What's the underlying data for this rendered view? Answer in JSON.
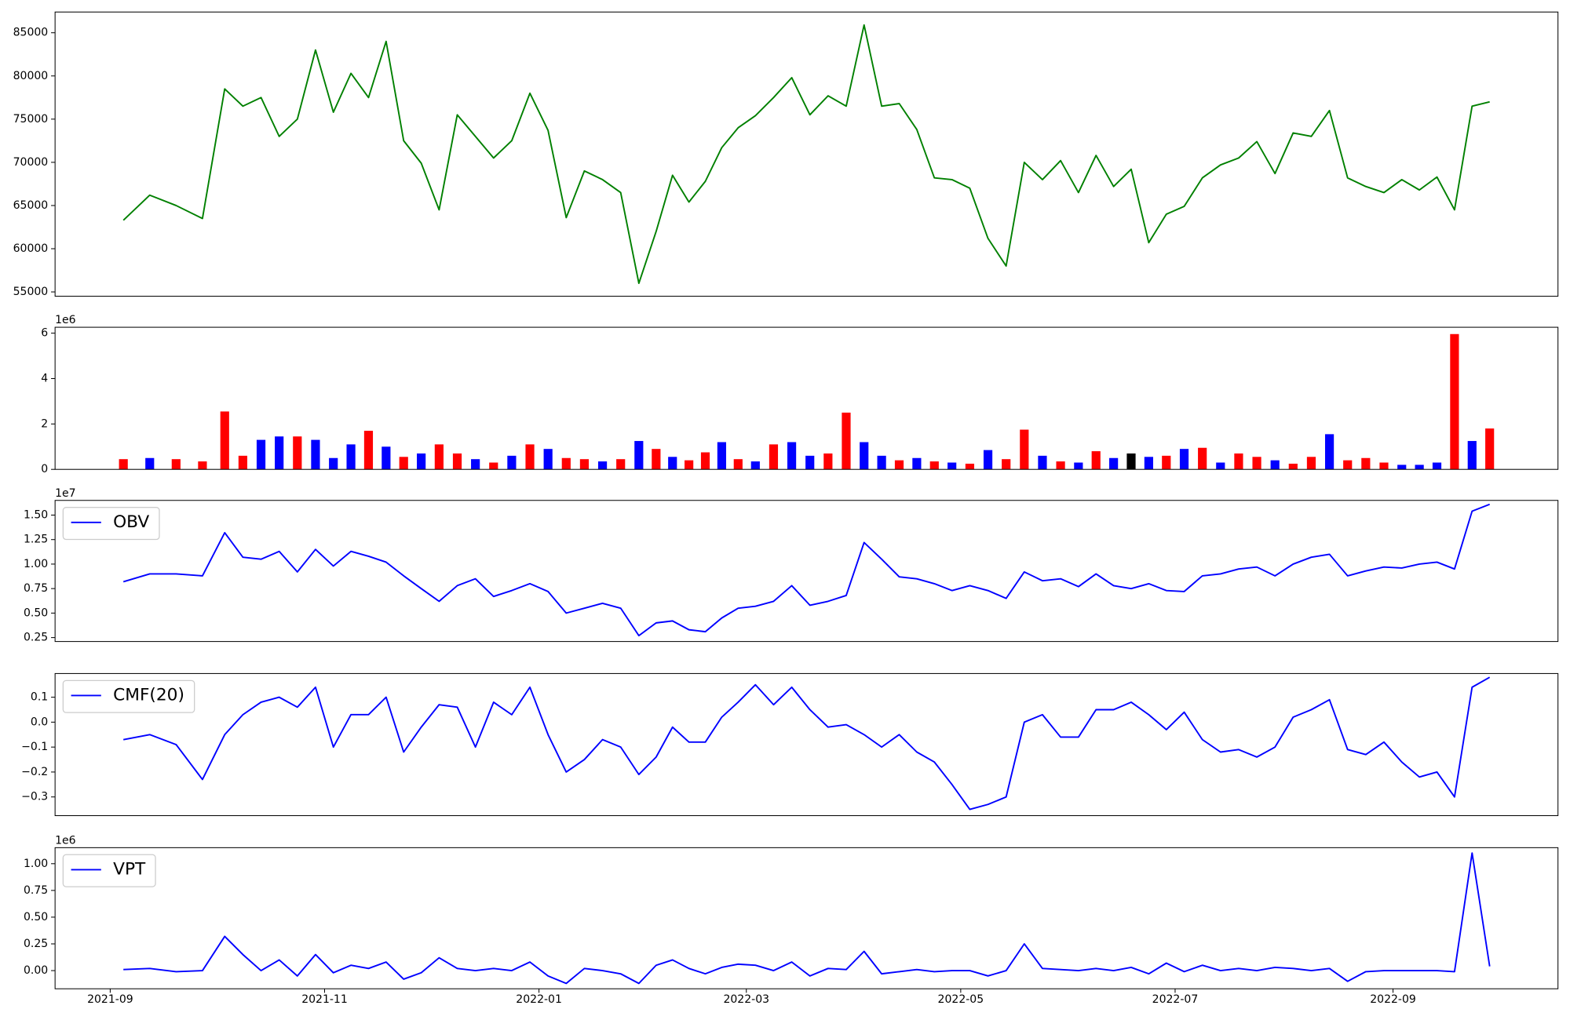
{
  "chart_data": [
    {
      "type": "line",
      "color": "green",
      "x": [
        "2021-09",
        "2021-09",
        "2021-09",
        "2021-09",
        "2021-10",
        "2021-10",
        "2021-10",
        "2021-10",
        "2021-10",
        "2021-10",
        "2021-11",
        "2021-11",
        "2021-11",
        "2021-11",
        "2021-11",
        "2021-11",
        "2021-12",
        "2021-12",
        "2021-12",
        "2021-12",
        "2021-12",
        "2021-12",
        "2022-01",
        "2022-01",
        "2022-01",
        "2022-01",
        "2022-01",
        "2022-01",
        "2022-02",
        "2022-02",
        "2022-02",
        "2022-02",
        "2022-02",
        "2022-02",
        "2022-03",
        "2022-03",
        "2022-03",
        "2022-03",
        "2022-03",
        "2022-03",
        "2022-04",
        "2022-04",
        "2022-04",
        "2022-04",
        "2022-04",
        "2022-04",
        "2022-05",
        "2022-05",
        "2022-05",
        "2022-05",
        "2022-05",
        "2022-05",
        "2022-06",
        "2022-06",
        "2022-06",
        "2022-06",
        "2022-06",
        "2022-06",
        "2022-07",
        "2022-07",
        "2022-07",
        "2022-07",
        "2022-07",
        "2022-07",
        "2022-08",
        "2022-08",
        "2022-08",
        "2022-08",
        "2022-08",
        "2022-08",
        "2022-09",
        "2022-09",
        "2022-09",
        "2022-09",
        "2022-09",
        "2022-09"
      ],
      "values": [
        63300,
        66200,
        65000,
        63500,
        78500,
        76500,
        77500,
        73000,
        75000,
        83000,
        75800,
        80300,
        77500,
        84000,
        72500,
        69900,
        64500,
        75500,
        73000,
        70500,
        72500,
        78000,
        73700,
        63600,
        69000,
        68000,
        66500,
        56000,
        62000,
        68500,
        65400,
        67800,
        71700,
        74000,
        75400,
        77500,
        79800,
        75500,
        77700,
        76500,
        85900,
        76500,
        76800,
        73800,
        68200,
        68000,
        67000,
        61200,
        58000,
        70000,
        68000,
        70200,
        66500,
        70800,
        67200,
        69200,
        60700,
        64000,
        64900,
        68200,
        69700,
        70500,
        72400,
        68700,
        73400,
        73000,
        76000,
        68200,
        67200,
        66500,
        68000,
        66800,
        68300,
        64500,
        76500,
        77000
      ],
      "ylim": [
        54500,
        87400
      ],
      "yticks": [
        55000,
        60000,
        65000,
        70000,
        75000,
        80000,
        85000
      ]
    },
    {
      "type": "bar",
      "offset_label": "1e6",
      "x": [
        "2021-09",
        "2021-09",
        "2021-09",
        "2021-09",
        "2021-10",
        "2021-10",
        "2021-10",
        "2021-10",
        "2021-10",
        "2021-10",
        "2021-11",
        "2021-11",
        "2021-11",
        "2021-11",
        "2021-11",
        "2021-11",
        "2021-12",
        "2021-12",
        "2021-12",
        "2021-12",
        "2021-12",
        "2021-12",
        "2022-01",
        "2022-01",
        "2022-01",
        "2022-01",
        "2022-01",
        "2022-01",
        "2022-02",
        "2022-02",
        "2022-02",
        "2022-02",
        "2022-02",
        "2022-02",
        "2022-03",
        "2022-03",
        "2022-03",
        "2022-03",
        "2022-03",
        "2022-03",
        "2022-04",
        "2022-04",
        "2022-04",
        "2022-04",
        "2022-04",
        "2022-04",
        "2022-05",
        "2022-05",
        "2022-05",
        "2022-05",
        "2022-05",
        "2022-05",
        "2022-06",
        "2022-06",
        "2022-06",
        "2022-06",
        "2022-06",
        "2022-06",
        "2022-07",
        "2022-07",
        "2022-07",
        "2022-07",
        "2022-07",
        "2022-07",
        "2022-08",
        "2022-08",
        "2022-08",
        "2022-08",
        "2022-08",
        "2022-08",
        "2022-09",
        "2022-09",
        "2022-09",
        "2022-09",
        "2022-09",
        "2022-09"
      ],
      "values": [
        450000,
        500000,
        450000,
        350000,
        2550000,
        600000,
        1300000,
        1450000,
        1450000,
        1300000,
        500000,
        1100000,
        1700000,
        1000000,
        550000,
        700000,
        1100000,
        700000,
        450000,
        300000,
        600000,
        1100000,
        900000,
        500000,
        450000,
        350000,
        450000,
        1250000,
        900000,
        550000,
        400000,
        750000,
        1200000,
        450000,
        350000,
        1100000,
        1200000,
        600000,
        700000,
        2500000,
        1200000,
        600000,
        400000,
        500000,
        350000,
        300000,
        250000,
        850000,
        450000,
        1750000,
        600000,
        350000,
        300000,
        800000,
        500000,
        700000,
        550000,
        600000,
        900000,
        950000,
        300000,
        700000,
        550000,
        400000,
        250000,
        550000,
        1550000,
        400000,
        500000,
        300000,
        200000,
        200000,
        300000,
        5960000,
        1250000,
        1800000
      ],
      "colors": [
        "red",
        "blue",
        "red",
        "red",
        "red",
        "red",
        "blue",
        "blue",
        "red",
        "blue",
        "blue",
        "blue",
        "red",
        "blue",
        "red",
        "blue",
        "red",
        "red",
        "blue",
        "red",
        "blue",
        "red",
        "blue",
        "red",
        "red",
        "blue",
        "red",
        "blue",
        "red",
        "blue",
        "red",
        "red",
        "blue",
        "red",
        "blue",
        "red",
        "blue",
        "blue",
        "red",
        "red",
        "blue",
        "blue",
        "red",
        "blue",
        "red",
        "blue",
        "red",
        "blue",
        "red",
        "red",
        "blue",
        "red",
        "blue",
        "red",
        "blue",
        "black",
        "blue",
        "red",
        "blue",
        "red",
        "blue",
        "red",
        "red",
        "blue",
        "red",
        "red",
        "blue",
        "red",
        "red",
        "red",
        "blue",
        "blue",
        "blue",
        "red",
        "blue",
        "red"
      ],
      "ylim": [
        0,
        6260000
      ],
      "yticks": [
        0,
        {
          "value": 2000000,
          "label": "2"
        },
        {
          "value": 4000000,
          "label": "4"
        },
        {
          "value": 6000000,
          "label": "6"
        }
      ]
    },
    {
      "type": "line",
      "offset_label": "1e7",
      "legend": "upper left",
      "x": [
        "2021-09",
        "2021-09",
        "2021-09",
        "2021-09",
        "2021-10",
        "2021-10",
        "2021-10",
        "2021-10",
        "2021-10",
        "2021-10",
        "2021-11",
        "2021-11",
        "2021-11",
        "2021-11",
        "2021-11",
        "2021-11",
        "2021-12",
        "2021-12",
        "2021-12",
        "2021-12",
        "2021-12",
        "2021-12",
        "2022-01",
        "2022-01",
        "2022-01",
        "2022-01",
        "2022-01",
        "2022-01",
        "2022-02",
        "2022-02",
        "2022-02",
        "2022-02",
        "2022-02",
        "2022-02",
        "2022-03",
        "2022-03",
        "2022-03",
        "2022-03",
        "2022-03",
        "2022-03",
        "2022-04",
        "2022-04",
        "2022-04",
        "2022-04",
        "2022-04",
        "2022-04",
        "2022-05",
        "2022-05",
        "2022-05",
        "2022-05",
        "2022-05",
        "2022-05",
        "2022-06",
        "2022-06",
        "2022-06",
        "2022-06",
        "2022-06",
        "2022-06",
        "2022-07",
        "2022-07",
        "2022-07",
        "2022-07",
        "2022-07",
        "2022-07",
        "2022-08",
        "2022-08",
        "2022-08",
        "2022-08",
        "2022-08",
        "2022-08",
        "2022-09",
        "2022-09",
        "2022-09",
        "2022-09",
        "2022-09",
        "2022-09"
      ],
      "series": [
        {
          "name": "OBV",
          "color": "blue",
          "values": [
            8200000,
            9000000,
            9000000,
            8800000,
            13200000,
            10700000,
            10500000,
            11300000,
            9200000,
            11500000,
            9800000,
            11300000,
            10800000,
            10200000,
            8800000,
            7500000,
            6200000,
            7800000,
            8500000,
            6700000,
            7300000,
            8000000,
            7200000,
            5000000,
            5500000,
            6000000,
            5500000,
            2700000,
            4000000,
            4200000,
            3300000,
            3100000,
            4500000,
            5500000,
            5700000,
            6200000,
            7800000,
            5800000,
            6200000,
            6800000,
            12200000,
            10500000,
            8700000,
            8500000,
            8000000,
            7300000,
            7800000,
            7300000,
            6500000,
            9200000,
            8300000,
            8500000,
            7700000,
            9000000,
            7800000,
            7500000,
            8000000,
            7300000,
            7200000,
            8800000,
            9000000,
            9500000,
            9700000,
            8800000,
            10000000,
            10700000,
            11000000,
            8800000,
            9300000,
            9700000,
            9600000,
            10000000,
            10200000,
            9500000,
            15400000,
            16100000
          ]
        }
      ],
      "ylim": [
        2100000,
        16500000
      ],
      "yticks": [
        {
          "value": 2500000,
          "label": "0.25"
        },
        {
          "value": 5000000,
          "label": "0.50"
        },
        {
          "value": 7500000,
          "label": "0.75"
        },
        {
          "value": 10000000,
          "label": "1.00"
        },
        {
          "value": 12500000,
          "label": "1.25"
        },
        {
          "value": 15000000,
          "label": "1.50"
        }
      ]
    },
    {
      "type": "line",
      "legend": "upper left",
      "x": [
        "2021-09",
        "2021-09",
        "2021-09",
        "2021-09",
        "2021-10",
        "2021-10",
        "2021-10",
        "2021-10",
        "2021-10",
        "2021-10",
        "2021-11",
        "2021-11",
        "2021-11",
        "2021-11",
        "2021-11",
        "2021-11",
        "2021-12",
        "2021-12",
        "2021-12",
        "2021-12",
        "2021-12",
        "2021-12",
        "2022-01",
        "2022-01",
        "2022-01",
        "2022-01",
        "2022-01",
        "2022-01",
        "2022-02",
        "2022-02",
        "2022-02",
        "2022-02",
        "2022-02",
        "2022-02",
        "2022-03",
        "2022-03",
        "2022-03",
        "2022-03",
        "2022-03",
        "2022-03",
        "2022-04",
        "2022-04",
        "2022-04",
        "2022-04",
        "2022-04",
        "2022-04",
        "2022-05",
        "2022-05",
        "2022-05",
        "2022-05",
        "2022-05",
        "2022-05",
        "2022-06",
        "2022-06",
        "2022-06",
        "2022-06",
        "2022-06",
        "2022-06",
        "2022-07",
        "2022-07",
        "2022-07",
        "2022-07",
        "2022-07",
        "2022-07",
        "2022-08",
        "2022-08",
        "2022-08",
        "2022-08",
        "2022-08",
        "2022-08",
        "2022-09",
        "2022-09",
        "2022-09",
        "2022-09",
        "2022-09",
        "2022-09"
      ],
      "series": [
        {
          "name": "CMF(20)",
          "color": "blue",
          "values": [
            -0.07,
            -0.05,
            -0.09,
            -0.23,
            -0.05,
            0.03,
            0.08,
            0.1,
            0.06,
            0.14,
            -0.1,
            0.03,
            0.03,
            0.1,
            -0.12,
            -0.02,
            0.07,
            0.06,
            -0.1,
            0.08,
            0.03,
            0.14,
            -0.05,
            -0.2,
            -0.15,
            -0.07,
            -0.1,
            -0.21,
            -0.14,
            -0.02,
            -0.08,
            -0.08,
            0.02,
            0.08,
            0.15,
            0.07,
            0.14,
            0.05,
            -0.02,
            -0.01,
            -0.05,
            -0.1,
            -0.05,
            -0.12,
            -0.16,
            -0.25,
            -0.35,
            -0.33,
            -0.3,
            0.0,
            0.03,
            -0.06,
            -0.06,
            0.05,
            0.05,
            0.08,
            0.03,
            -0.03,
            0.04,
            -0.07,
            -0.12,
            -0.11,
            -0.14,
            -0.1,
            0.02,
            0.05,
            0.09,
            -0.11,
            -0.13,
            -0.08,
            -0.16,
            -0.22,
            -0.2,
            -0.3,
            0.14,
            0.18
          ]
        }
      ],
      "ylim": [
        -0.375,
        0.195
      ],
      "yticks": [
        {
          "value": -0.3,
          "label": "−0.3"
        },
        {
          "value": -0.2,
          "label": "−0.2"
        },
        {
          "value": -0.1,
          "label": "−0.1"
        },
        {
          "value": 0,
          "label": "0.0"
        },
        0.1
      ]
    },
    {
      "type": "line",
      "offset_label": "1e6",
      "legend": "upper left",
      "x": [
        "2021-09",
        "2021-09",
        "2021-09",
        "2021-09",
        "2021-10",
        "2021-10",
        "2021-10",
        "2021-10",
        "2021-10",
        "2021-10",
        "2021-11",
        "2021-11",
        "2021-11",
        "2021-11",
        "2021-11",
        "2021-11",
        "2021-12",
        "2021-12",
        "2021-12",
        "2021-12",
        "2021-12",
        "2021-12",
        "2022-01",
        "2022-01",
        "2022-01",
        "2022-01",
        "2022-01",
        "2022-01",
        "2022-02",
        "2022-02",
        "2022-02",
        "2022-02",
        "2022-02",
        "2022-02",
        "2022-03",
        "2022-03",
        "2022-03",
        "2022-03",
        "2022-03",
        "2022-03",
        "2022-04",
        "2022-04",
        "2022-04",
        "2022-04",
        "2022-04",
        "2022-04",
        "2022-05",
        "2022-05",
        "2022-05",
        "2022-05",
        "2022-05",
        "2022-05",
        "2022-06",
        "2022-06",
        "2022-06",
        "2022-06",
        "2022-06",
        "2022-06",
        "2022-07",
        "2022-07",
        "2022-07",
        "2022-07",
        "2022-07",
        "2022-07",
        "2022-08",
        "2022-08",
        "2022-08",
        "2022-08",
        "2022-08",
        "2022-08",
        "2022-09",
        "2022-09",
        "2022-09",
        "2022-09",
        "2022-09",
        "2022-09"
      ],
      "series": [
        {
          "name": "VPT",
          "color": "blue",
          "values": [
            10000,
            20000,
            -10000,
            0,
            320000,
            150000,
            0,
            100000,
            -50000,
            150000,
            -20000,
            50000,
            20000,
            80000,
            -80000,
            -20000,
            120000,
            20000,
            0,
            20000,
            0,
            80000,
            -50000,
            -120000,
            20000,
            0,
            -30000,
            -120000,
            50000,
            100000,
            20000,
            -30000,
            30000,
            60000,
            50000,
            0,
            80000,
            -50000,
            20000,
            10000,
            180000,
            -30000,
            -10000,
            10000,
            -10000,
            0,
            0,
            -50000,
            0,
            250000,
            20000,
            10000,
            0,
            20000,
            0,
            30000,
            -30000,
            70000,
            -10000,
            50000,
            0,
            20000,
            0,
            30000,
            20000,
            0,
            20000,
            -100000,
            -10000,
            0,
            0,
            0,
            0,
            -10000,
            1100000,
            40000
          ]
        }
      ],
      "ylim": [
        -170000,
        1150000
      ],
      "yticks": [
        {
          "value": 0,
          "label": "0.00"
        },
        {
          "value": 250000,
          "label": "0.25"
        },
        {
          "value": 500000,
          "label": "0.50"
        },
        {
          "value": 750000,
          "label": "0.75"
        },
        {
          "value": 1000000,
          "label": "1.00"
        }
      ],
      "xticks": [
        "2021-09",
        "2021-11",
        "2022-01",
        "2022-03",
        "2022-05",
        "2022-07",
        "2022-09"
      ]
    }
  ]
}
